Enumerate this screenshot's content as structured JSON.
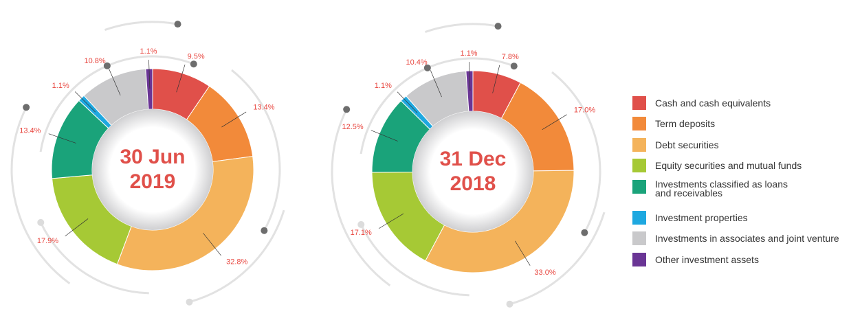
{
  "chart_data": [
    {
      "type": "donut",
      "center_label": [
        "30 Jun",
        "2019"
      ],
      "categories": [
        "Cash and cash equivalents",
        "Term deposits",
        "Debt securities",
        "Equity securities and mutual funds",
        "Investments classified as loans\nand receivables",
        "Investment properties",
        "Investments in associates and joint venture",
        "Other investment assets"
      ],
      "colors": [
        "#e0504a",
        "#f28a3a",
        "#f4b35b",
        "#a6c935",
        "#1aa37a",
        "#1ea8e0",
        "#c9c9cb",
        "#6a3595"
      ],
      "values": [
        9.5,
        13.4,
        32.8,
        17.9,
        13.4,
        1.1,
        10.8,
        1.1
      ],
      "value_labels": [
        "9.5%",
        "13.4%",
        "32.8%",
        "17.9%",
        "13.4%",
        "1.1%",
        "10.8%",
        "1.1%"
      ]
    },
    {
      "type": "donut",
      "center_label": [
        "31 Dec",
        "2018"
      ],
      "values": [
        7.8,
        17.0,
        33.0,
        17.1,
        12.5,
        1.1,
        10.4,
        1.1
      ],
      "value_labels": [
        "7.8%",
        "17.0%",
        "33.0%",
        "17.1%",
        "12.5%",
        "1.1%",
        "10.4%",
        "1.1%"
      ]
    }
  ]
}
